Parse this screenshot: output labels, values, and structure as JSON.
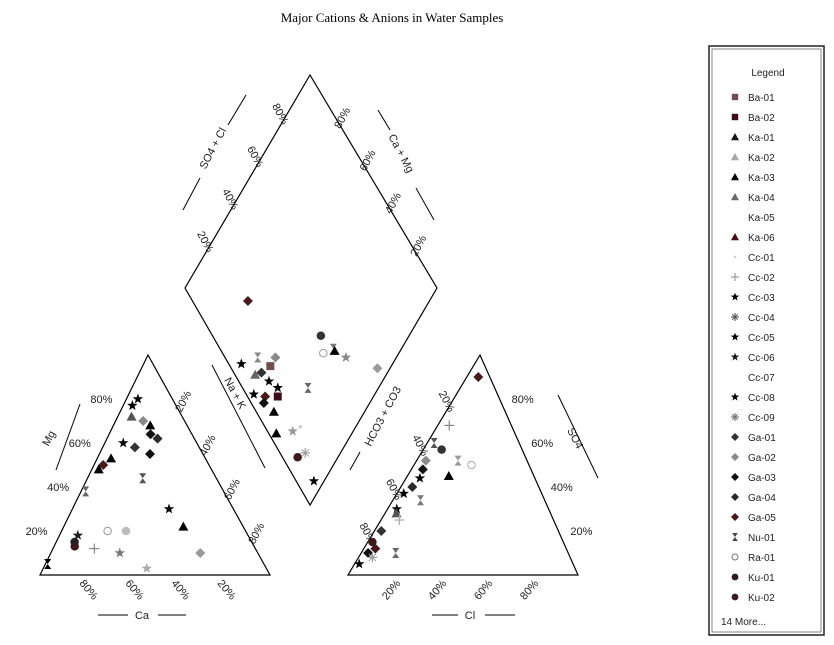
{
  "chart_data": {
    "type": "scatter",
    "title": "Major Cations & Anions in Water Samples",
    "legend": {
      "title": "Legend",
      "position": "right",
      "more": "14 More...",
      "entries": [
        {
          "name": "Ba-01",
          "marker": "square",
          "color": "#6f4f4f"
        },
        {
          "name": "Ba-02",
          "marker": "square",
          "color": "#3a0e14"
        },
        {
          "name": "Ka-01",
          "marker": "triangle",
          "color": "#151515"
        },
        {
          "name": "Ka-02",
          "marker": "triangle",
          "color": "#a6a6a6"
        },
        {
          "name": "Ka-03",
          "marker": "triangle",
          "color": "#000000"
        },
        {
          "name": "Ka-04",
          "marker": "triangle",
          "color": "#6a6a6a"
        },
        {
          "name": "Ka-05",
          "marker": "none",
          "color": "#dcdcdc"
        },
        {
          "name": "Ka-06",
          "marker": "triangle",
          "color": "#4a0b12"
        },
        {
          "name": "Cc-01",
          "marker": "dot",
          "color": "#d0d0d0"
        },
        {
          "name": "Cc-02",
          "marker": "plus",
          "color": "#9a9a9a"
        },
        {
          "name": "Cc-03",
          "marker": "star",
          "color": "#000000"
        },
        {
          "name": "Cc-04",
          "marker": "cross",
          "color": "#555555"
        },
        {
          "name": "Cc-05",
          "marker": "star",
          "color": "#000000"
        },
        {
          "name": "Cc-06",
          "marker": "star",
          "color": "#1a1a1a"
        },
        {
          "name": "Cc-07",
          "marker": "none",
          "color": "#dddddd"
        },
        {
          "name": "Cc-08",
          "marker": "star",
          "color": "#000000"
        },
        {
          "name": "Cc-09",
          "marker": "cross",
          "color": "#707070"
        },
        {
          "name": "Ga-01",
          "marker": "diamond",
          "color": "#333333"
        },
        {
          "name": "Ga-02",
          "marker": "diamond",
          "color": "#8a8a8a"
        },
        {
          "name": "Ga-03",
          "marker": "diamond",
          "color": "#111111"
        },
        {
          "name": "Ga-04",
          "marker": "diamond",
          "color": "#2a2a2a"
        },
        {
          "name": "Ga-05",
          "marker": "diamond",
          "color": "#4a1a1a"
        },
        {
          "name": "Nu-01",
          "marker": "hourglass",
          "color": "#444444"
        },
        {
          "name": "Ra-01",
          "marker": "ring",
          "color": "#777777"
        },
        {
          "name": "Ku-01",
          "marker": "circle",
          "color": "#2a1a1a"
        },
        {
          "name": "Ku-02",
          "marker": "circle",
          "color": "#3a1a1a"
        }
      ]
    },
    "cation_triangle": {
      "axes": {
        "left": "Mg",
        "bottom": "Ca",
        "right": "Na + K"
      },
      "ticks": {
        "mg": [
          "20%",
          "40%",
          "60%",
          "80%"
        ],
        "ca": [
          "80%",
          "60%",
          "40%",
          "20%"
        ],
        "nak": [
          "20%",
          "40%",
          "60%",
          "80%"
        ]
      },
      "points": [
        {
          "mg": 80,
          "nak": 5,
          "marker": "star",
          "color": "#000"
        },
        {
          "mg": 77,
          "nak": 4,
          "marker": "star",
          "color": "#000"
        },
        {
          "mg": 72,
          "nak": 6,
          "marker": "triangle",
          "color": "#555"
        },
        {
          "mg": 70,
          "nak": 12,
          "marker": "diamond",
          "color": "#8a8a8a"
        },
        {
          "mg": 68,
          "nak": 16,
          "marker": "triangle",
          "color": "#000"
        },
        {
          "mg": 64,
          "nak": 18,
          "marker": "diamond",
          "color": "#111"
        },
        {
          "mg": 62,
          "nak": 22,
          "marker": "diamond",
          "color": "#2a2a2a"
        },
        {
          "mg": 60,
          "nak": 8,
          "marker": "star",
          "color": "#000"
        },
        {
          "mg": 58,
          "nak": 14,
          "marker": "diamond",
          "color": "#333"
        },
        {
          "mg": 53,
          "nak": 6,
          "marker": "triangle",
          "color": "#000"
        },
        {
          "mg": 50,
          "nak": 4,
          "marker": "diamond",
          "color": "#4a1a1a"
        },
        {
          "mg": 48,
          "nak": 3,
          "marker": "triangle",
          "color": "#000"
        },
        {
          "mg": 55,
          "nak": 22,
          "marker": "diamond",
          "color": "#111"
        },
        {
          "mg": 44,
          "nak": 24,
          "marker": "hourglass",
          "color": "#555"
        },
        {
          "mg": 38,
          "nak": 2,
          "marker": "hourglass",
          "color": "#666"
        },
        {
          "mg": 30,
          "nak": 42,
          "marker": "star",
          "color": "#000"
        },
        {
          "mg": 22,
          "nak": 52,
          "marker": "triangle",
          "color": "#000"
        },
        {
          "mg": 20,
          "nak": 20,
          "marker": "ring",
          "color": "#999"
        },
        {
          "mg": 20,
          "nak": 28,
          "marker": "circle",
          "color": "#bbb"
        },
        {
          "mg": 18,
          "nak": 8,
          "marker": "star",
          "color": "#222"
        },
        {
          "mg": 15,
          "nak": 8,
          "marker": "circle",
          "color": "#222"
        },
        {
          "mg": 13,
          "nak": 9,
          "marker": "circle",
          "color": "#3a1a1a"
        },
        {
          "mg": 12,
          "nak": 18,
          "marker": "plus",
          "color": "#888"
        },
        {
          "mg": 10,
          "nak": 30,
          "marker": "star",
          "color": "#777"
        },
        {
          "mg": 10,
          "nak": 65,
          "marker": "diamond",
          "color": "#999"
        },
        {
          "mg": 5,
          "nak": 1,
          "marker": "hourglass",
          "color": "#000"
        },
        {
          "mg": 3,
          "nak": 45,
          "marker": "star",
          "color": "#aaa"
        }
      ]
    },
    "anion_triangle": {
      "axes": {
        "left": "HCO3 + CO3",
        "bottom": "Cl",
        "right": "SO4"
      },
      "ticks": {
        "hco3": [
          "80%",
          "60%",
          "40%",
          "20%"
        ],
        "cl": [
          "20%",
          "40%",
          "60%",
          "80%"
        ],
        "so4": [
          "20%",
          "40%",
          "60%",
          "80%"
        ]
      },
      "points": [
        {
          "so4": 90,
          "cl": 5,
          "marker": "diamond",
          "color": "#4a1a1a"
        },
        {
          "so4": 68,
          "cl": 5,
          "marker": "plus",
          "color": "#888"
        },
        {
          "so4": 60,
          "cl": 3,
          "marker": "hourglass",
          "color": "#555"
        },
        {
          "so4": 57,
          "cl": 8,
          "marker": "circle",
          "color": "#333"
        },
        {
          "so4": 52,
          "cl": 4,
          "marker": "diamond",
          "color": "#8a8a8a"
        },
        {
          "so4": 52,
          "cl": 18,
          "marker": "hourglass",
          "color": "#999"
        },
        {
          "so4": 50,
          "cl": 25,
          "marker": "ring",
          "color": "#aaa"
        },
        {
          "so4": 45,
          "cl": 18,
          "marker": "triangle",
          "color": "#000"
        },
        {
          "so4": 48,
          "cl": 5,
          "marker": "diamond",
          "color": "#111"
        },
        {
          "so4": 44,
          "cl": 6,
          "marker": "star",
          "color": "#000"
        },
        {
          "so4": 40,
          "cl": 5,
          "marker": "diamond",
          "color": "#2a2a2a"
        },
        {
          "so4": 37,
          "cl": 3,
          "marker": "star",
          "color": "#000"
        },
        {
          "so4": 34,
          "cl": 12,
          "marker": "hourglass",
          "color": "#777"
        },
        {
          "so4": 30,
          "cl": 4,
          "marker": "star",
          "color": "#000"
        },
        {
          "so4": 28,
          "cl": 5,
          "marker": "triangle",
          "color": "#555"
        },
        {
          "so4": 25,
          "cl": 8,
          "marker": "plus",
          "color": "#aaa"
        },
        {
          "so4": 20,
          "cl": 3,
          "marker": "diamond",
          "color": "#333"
        },
        {
          "so4": 15,
          "cl": 2,
          "marker": "circle",
          "color": "#3a1a1a"
        },
        {
          "so4": 12,
          "cl": 5,
          "marker": "diamond",
          "color": "#4a1a1a"
        },
        {
          "so4": 10,
          "cl": 3,
          "marker": "diamond",
          "color": "#111"
        },
        {
          "so4": 10,
          "cl": 15,
          "marker": "hourglass",
          "color": "#666"
        },
        {
          "so4": 5,
          "cl": 2,
          "marker": "star",
          "color": "#000"
        },
        {
          "so4": 8,
          "cl": 6,
          "marker": "cross",
          "color": "#999"
        }
      ]
    },
    "diamond": {
      "axes": {
        "upper_left": "SO4 + Cl",
        "upper_right": "Ca + Mg"
      },
      "ticks": {
        "so4cl": [
          "20%",
          "40%",
          "60%",
          "80%"
        ],
        "camg": [
          "20%",
          "40%",
          "60%",
          "80%"
        ]
      },
      "points": [
        {
          "so4cl": 72,
          "camg": 22,
          "marker": "diamond",
          "color": "#4a1a1a"
        },
        {
          "so4cl": 60,
          "camg": 5,
          "marker": "star",
          "color": "#000"
        },
        {
          "so4cl": 55,
          "camg": 13,
          "marker": "hourglass",
          "color": "#888"
        },
        {
          "so4cl": 52,
          "camg": 8,
          "marker": "triangle",
          "color": "#666"
        },
        {
          "so4cl": 50,
          "camg": 11,
          "marker": "diamond",
          "color": "#333"
        },
        {
          "so4cl": 48,
          "camg": 16,
          "marker": "square",
          "color": "#6f4f4f"
        },
        {
          "so4cl": 48,
          "camg": 20,
          "marker": "diamond",
          "color": "#8a8a8a"
        },
        {
          "so4cl": 48,
          "camg": 3,
          "marker": "star",
          "color": "#000"
        },
        {
          "so4cl": 45,
          "camg": 12,
          "marker": "star",
          "color": "#000"
        },
        {
          "so4cl": 43,
          "camg": 7,
          "marker": "diamond",
          "color": "#4a1a1a"
        },
        {
          "so4cl": 42,
          "camg": 5,
          "marker": "diamond",
          "color": "#111"
        },
        {
          "so4cl": 40,
          "camg": 14,
          "marker": "star",
          "color": "#000"
        },
        {
          "so4cl": 38,
          "camg": 12,
          "marker": "square",
          "color": "#3a0e14"
        },
        {
          "so4cl": 36,
          "camg": 7,
          "marker": "triangle",
          "color": "#000"
        },
        {
          "so4cl": 35,
          "camg": 43,
          "marker": "circle",
          "color": "#333"
        },
        {
          "so4cl": 30,
          "camg": 40,
          "marker": "ring",
          "color": "#999"
        },
        {
          "so4cl": 27,
          "camg": 45,
          "marker": "hourglass",
          "color": "#777"
        },
        {
          "so4cl": 30,
          "camg": 3,
          "marker": "triangle",
          "color": "#000"
        },
        {
          "so4cl": 24,
          "camg": 10,
          "marker": "star",
          "color": "#999"
        },
        {
          "so4cl": 22,
          "camg": 14,
          "marker": "dot",
          "color": "#ccc"
        },
        {
          "so4cl": 28,
          "camg": 26,
          "marker": "hourglass",
          "color": "#666"
        },
        {
          "so4cl": 26,
          "camg": 45,
          "marker": "triangle",
          "color": "#000"
        },
        {
          "so4cl": 20,
          "camg": 48,
          "marker": "star",
          "color": "#888"
        },
        {
          "so4cl": 16,
          "camg": 6,
          "marker": "circle",
          "color": "#3a1a1a"
        },
        {
          "so4cl": 14,
          "camg": 10,
          "marker": "cross",
          "color": "#999"
        },
        {
          "so4cl": 4,
          "camg": 7,
          "marker": "star",
          "color": "#000"
        },
        {
          "so4cl": 5,
          "camg": 58,
          "marker": "diamond",
          "color": "#999"
        }
      ]
    }
  }
}
